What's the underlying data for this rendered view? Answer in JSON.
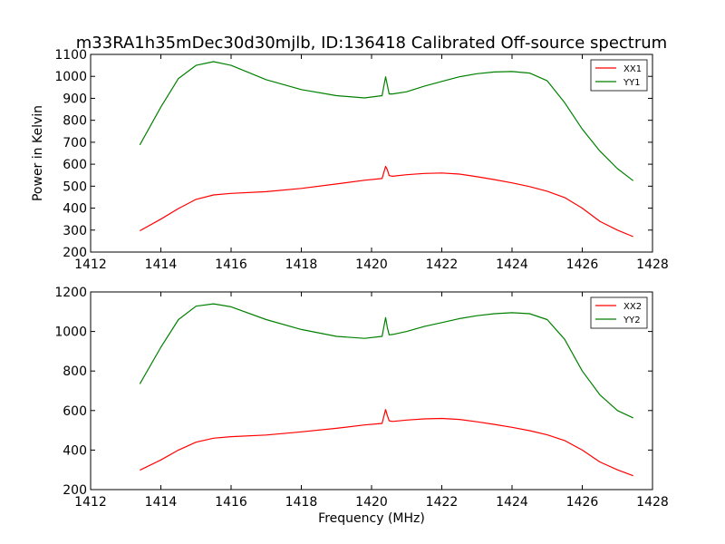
{
  "chart_data": [
    {
      "type": "line",
      "title": "m33RA1h35mDec30d30mjlb, ID:136418 Calibrated Off-source spectrum",
      "xlabel": "",
      "ylabel": "Power in Kelvin",
      "xlim": [
        1412,
        1428
      ],
      "ylim": [
        200,
        1100
      ],
      "xticks": [
        "1412",
        "1414",
        "1416",
        "1418",
        "1420",
        "1422",
        "1424",
        "1426",
        "1428"
      ],
      "yticks": [
        "200",
        "300",
        "400",
        "500",
        "600",
        "700",
        "800",
        "900",
        "1000",
        "1100"
      ],
      "legend_position": "top-right",
      "grid": false,
      "x": [
        1413.4,
        1414.0,
        1414.5,
        1415.0,
        1415.5,
        1416.0,
        1417.0,
        1418.0,
        1419.0,
        1419.8,
        1420.3,
        1420.4,
        1420.45,
        1420.5,
        1420.6,
        1421.0,
        1421.5,
        1422.0,
        1422.5,
        1423.0,
        1423.5,
        1424.0,
        1424.5,
        1425.0,
        1425.5,
        1426.0,
        1426.5,
        1427.0,
        1427.45
      ],
      "series": [
        {
          "name": "XX1",
          "color": "#ff0000",
          "values": [
            297,
            350,
            398,
            440,
            460,
            467,
            475,
            490,
            510,
            527,
            535,
            590,
            575,
            548,
            545,
            552,
            558,
            560,
            555,
            543,
            530,
            515,
            498,
            477,
            448,
            400,
            340,
            300,
            270
          ]
        },
        {
          "name": "YY1",
          "color": "#008000",
          "values": [
            688,
            860,
            990,
            1050,
            1067,
            1050,
            985,
            940,
            912,
            902,
            912,
            998,
            960,
            920,
            920,
            930,
            955,
            977,
            998,
            1012,
            1020,
            1022,
            1015,
            980,
            880,
            760,
            660,
            580,
            525
          ]
        }
      ]
    },
    {
      "type": "line",
      "title": "",
      "xlabel": "Frequency (MHz)",
      "ylabel": "",
      "xlim": [
        1412,
        1428
      ],
      "ylim": [
        200,
        1200
      ],
      "xticks": [
        "1412",
        "1414",
        "1416",
        "1418",
        "1420",
        "1422",
        "1424",
        "1426",
        "1428"
      ],
      "yticks": [
        "200",
        "400",
        "600",
        "800",
        "1000",
        "1200"
      ],
      "legend_position": "top-right",
      "grid": false,
      "x": [
        1413.4,
        1414.0,
        1414.5,
        1415.0,
        1415.5,
        1416.0,
        1417.0,
        1418.0,
        1419.0,
        1419.8,
        1420.3,
        1420.4,
        1420.45,
        1420.5,
        1420.6,
        1421.0,
        1421.5,
        1422.0,
        1422.5,
        1423.0,
        1423.5,
        1424.0,
        1424.5,
        1425.0,
        1425.5,
        1426.0,
        1426.5,
        1427.0,
        1427.45
      ],
      "series": [
        {
          "name": "XX2",
          "color": "#ff0000",
          "values": [
            298,
            350,
            400,
            440,
            460,
            468,
            476,
            492,
            510,
            527,
            535,
            605,
            575,
            548,
            545,
            552,
            558,
            560,
            555,
            543,
            530,
            515,
            498,
            477,
            448,
            400,
            340,
            300,
            270
          ]
        },
        {
          "name": "YY2",
          "color": "#008000",
          "values": [
            735,
            920,
            1060,
            1128,
            1140,
            1125,
            1060,
            1010,
            975,
            965,
            975,
            1070,
            1020,
            983,
            985,
            1000,
            1025,
            1045,
            1065,
            1080,
            1090,
            1095,
            1090,
            1060,
            960,
            800,
            680,
            600,
            563
          ]
        }
      ]
    }
  ]
}
